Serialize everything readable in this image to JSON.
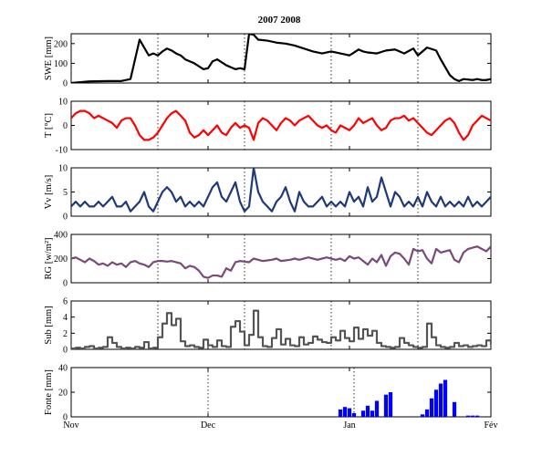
{
  "chart_data": {
    "title": "2007 2008",
    "x_axis": {
      "tick_labels": [
        "Nov",
        "Dec",
        "Jan",
        "Fév"
      ],
      "tick_days": [
        0,
        30,
        61,
        92
      ],
      "range_days": [
        0,
        92
      ]
    },
    "panels": [
      {
        "type": "line",
        "ylabel": "SWE [mm]",
        "ylim": [
          0,
          250
        ],
        "yticks": [
          0,
          100,
          200
        ],
        "color": "#000000",
        "marker_days": [
          19,
          38,
          57,
          76
        ],
        "x": [
          0,
          4,
          8,
          11,
          13,
          14,
          15,
          16,
          17,
          18,
          19,
          20,
          21,
          22,
          23,
          24,
          25,
          26,
          27,
          28,
          29,
          30,
          31,
          32,
          33,
          34,
          35,
          36,
          37,
          38,
          39,
          40,
          41,
          43,
          45,
          47,
          49,
          51,
          53,
          55,
          57,
          59,
          61,
          62,
          63,
          64,
          65,
          67,
          69,
          71,
          73,
          75,
          76,
          78,
          80,
          81,
          82,
          83,
          84,
          85,
          86,
          88,
          89,
          90,
          91,
          92
        ],
        "values": [
          0,
          8,
          10,
          10,
          20,
          120,
          220,
          180,
          140,
          150,
          140,
          160,
          175,
          165,
          150,
          140,
          120,
          110,
          100,
          85,
          70,
          75,
          110,
          120,
          105,
          90,
          80,
          70,
          75,
          70,
          250,
          245,
          220,
          215,
          205,
          200,
          190,
          175,
          160,
          150,
          160,
          150,
          140,
          155,
          170,
          160,
          155,
          150,
          165,
          170,
          150,
          175,
          140,
          180,
          165,
          120,
          80,
          40,
          20,
          10,
          20,
          15,
          20,
          15,
          15,
          20
        ]
      },
      {
        "type": "line",
        "ylabel": "T [°C]",
        "ylim": [
          -10,
          10
        ],
        "yticks": [
          -10,
          0,
          10
        ],
        "color": "#ff0000",
        "marker_days": [
          19,
          38,
          57,
          76
        ],
        "x": [
          0,
          1,
          2,
          3,
          4,
          5,
          6,
          7,
          8,
          9,
          10,
          11,
          12,
          13,
          14,
          15,
          16,
          17,
          18,
          19,
          20,
          21,
          22,
          23,
          24,
          25,
          26,
          27,
          28,
          29,
          30,
          31,
          32,
          33,
          34,
          35,
          36,
          37,
          38,
          39,
          40,
          41,
          42,
          43,
          44,
          45,
          46,
          47,
          48,
          49,
          50,
          51,
          52,
          53,
          54,
          55,
          56,
          57,
          58,
          59,
          60,
          61,
          62,
          63,
          64,
          65,
          66,
          67,
          68,
          69,
          70,
          71,
          72,
          73,
          74,
          75,
          76,
          77,
          78,
          79,
          80,
          81,
          82,
          83,
          84,
          85,
          86,
          87,
          88,
          89,
          90,
          91,
          92
        ],
        "values": [
          3,
          5,
          6,
          6,
          5,
          3,
          4,
          3,
          2,
          1,
          -1,
          2,
          3,
          3,
          0,
          -4,
          -6,
          -6,
          -5,
          -3,
          0,
          3,
          5,
          6,
          4,
          2,
          -3,
          -5,
          -4,
          -2,
          -4,
          -2,
          0,
          -3,
          -4,
          -1,
          1,
          -1,
          0,
          -1,
          -6,
          1,
          3,
          2,
          0,
          -2,
          1,
          3,
          2,
          0,
          2,
          3,
          4,
          2,
          0,
          -1,
          0,
          -2,
          -3,
          0,
          -1,
          -2,
          0,
          3,
          1,
          2,
          3,
          0,
          -2,
          -1,
          2,
          3,
          3,
          4,
          2,
          3,
          1,
          -1,
          -3,
          -4,
          -2,
          0,
          2,
          3,
          1,
          -3,
          -6,
          -4,
          0,
          2,
          4,
          3,
          2
        ]
      },
      {
        "type": "line",
        "ylabel": "Vv [m/s]",
        "ylim": [
          0,
          10
        ],
        "yticks": [
          0,
          5,
          10
        ],
        "color": "#1f3a7a",
        "marker_days": [
          19,
          38,
          57,
          76
        ],
        "x": [
          0,
          1,
          2,
          3,
          4,
          5,
          6,
          7,
          8,
          9,
          10,
          11,
          12,
          13,
          14,
          15,
          16,
          17,
          18,
          19,
          20,
          21,
          22,
          23,
          24,
          25,
          26,
          27,
          28,
          29,
          30,
          31,
          32,
          33,
          34,
          35,
          36,
          37,
          38,
          39,
          40,
          41,
          42,
          43,
          44,
          45,
          46,
          47,
          48,
          49,
          50,
          51,
          52,
          53,
          54,
          55,
          56,
          57,
          58,
          59,
          60,
          61,
          62,
          63,
          64,
          65,
          66,
          67,
          68,
          69,
          70,
          71,
          72,
          73,
          74,
          75,
          76,
          77,
          78,
          79,
          80,
          81,
          82,
          83,
          84,
          85,
          86,
          87,
          88,
          89,
          90,
          91,
          92
        ],
        "values": [
          2,
          3,
          2,
          3,
          2,
          2,
          3,
          2,
          3,
          4,
          2,
          2,
          3,
          1,
          2,
          3,
          5,
          2,
          1,
          3,
          5,
          6,
          5,
          3,
          4,
          2,
          3,
          2,
          3,
          2,
          4,
          6,
          7,
          4,
          3,
          5,
          7,
          3,
          1,
          2,
          10,
          5,
          3,
          2,
          1,
          3,
          4,
          6,
          3,
          1,
          5,
          3,
          2,
          2,
          3,
          4,
          2,
          3,
          2,
          3,
          2,
          5,
          3,
          4,
          2,
          6,
          3,
          4,
          8,
          5,
          2,
          5,
          4,
          2,
          3,
          2,
          4,
          2,
          5,
          3,
          2,
          4,
          2,
          3,
          2,
          3,
          2,
          4,
          2,
          3,
          2,
          3,
          4
        ]
      },
      {
        "type": "line",
        "ylabel": "RG [w/m²]",
        "ylim": [
          0,
          400
        ],
        "yticks": [
          0,
          200,
          400
        ],
        "color": "#7a4a78",
        "marker_days": [
          19,
          38,
          57,
          76
        ],
        "x": [
          0,
          1,
          2,
          3,
          4,
          5,
          6,
          7,
          8,
          9,
          10,
          11,
          12,
          13,
          14,
          15,
          16,
          17,
          18,
          19,
          20,
          21,
          22,
          23,
          24,
          25,
          26,
          27,
          28,
          29,
          30,
          31,
          32,
          33,
          34,
          35,
          36,
          37,
          38,
          39,
          40,
          41,
          42,
          43,
          44,
          45,
          46,
          47,
          48,
          49,
          50,
          51,
          52,
          53,
          54,
          55,
          56,
          57,
          58,
          59,
          60,
          61,
          62,
          63,
          64,
          65,
          66,
          67,
          68,
          69,
          70,
          71,
          72,
          73,
          74,
          75,
          76,
          77,
          78,
          79,
          80,
          81,
          82,
          83,
          84,
          85,
          86,
          87,
          88,
          89,
          90,
          91,
          92
        ],
        "values": [
          200,
          210,
          190,
          170,
          200,
          180,
          150,
          160,
          140,
          170,
          150,
          160,
          130,
          170,
          180,
          160,
          150,
          130,
          170,
          180,
          180,
          175,
          180,
          170,
          160,
          120,
          140,
          130,
          100,
          50,
          40,
          60,
          60,
          50,
          120,
          100,
          170,
          180,
          175,
          170,
          200,
          190,
          180,
          185,
          190,
          200,
          180,
          185,
          190,
          200,
          190,
          200,
          210,
          200,
          190,
          200,
          210,
          200,
          190,
          200,
          180,
          220,
          200,
          210,
          180,
          150,
          200,
          170,
          230,
          140,
          220,
          250,
          240,
          200,
          150,
          280,
          260,
          270,
          200,
          160,
          280,
          250,
          260,
          270,
          190,
          170,
          250,
          280,
          290,
          300,
          280,
          260,
          300
        ]
      },
      {
        "type": "step",
        "ylabel": "Sub [mm]",
        "ylim": [
          0,
          6
        ],
        "yticks": [
          0,
          2,
          4,
          6
        ],
        "color": "#555555",
        "marker_days": [
          19,
          38,
          57,
          76
        ],
        "x": [
          0,
          1,
          2,
          3,
          4,
          5,
          6,
          7,
          8,
          9,
          10,
          11,
          12,
          13,
          14,
          15,
          16,
          17,
          18,
          19,
          20,
          21,
          22,
          23,
          24,
          25,
          26,
          27,
          28,
          29,
          30,
          31,
          32,
          33,
          34,
          35,
          36,
          37,
          38,
          39,
          40,
          41,
          42,
          43,
          44,
          45,
          46,
          47,
          48,
          49,
          50,
          51,
          52,
          53,
          54,
          55,
          56,
          57,
          58,
          59,
          60,
          61,
          62,
          63,
          64,
          65,
          66,
          67,
          68,
          69,
          70,
          71,
          72,
          73,
          74,
          75,
          76,
          77,
          78,
          79,
          80,
          81,
          82,
          83,
          84,
          85,
          86,
          87,
          88,
          89,
          90,
          91,
          92
        ],
        "values": [
          0.1,
          0.2,
          0.1,
          0.3,
          0.4,
          0.1,
          0.2,
          0.3,
          1.5,
          0.8,
          0.3,
          0.1,
          0.2,
          0.1,
          0.3,
          0.2,
          0.9,
          0.1,
          0.2,
          1.5,
          3.2,
          4.5,
          3.0,
          3.8,
          1.0,
          0.4,
          0.5,
          0.3,
          0.2,
          1.2,
          0.5,
          0.3,
          1.1,
          0.4,
          0.3,
          2.8,
          3.5,
          2.2,
          0.5,
          1.8,
          4.8,
          1.5,
          0.4,
          0.3,
          1.4,
          2.5,
          0.6,
          1.3,
          0.5,
          0.4,
          1.5,
          0.6,
          0.8,
          1.6,
          1.2,
          0.9,
          0.8,
          1.5,
          1.1,
          2.3,
          1.4,
          1.0,
          2.7,
          1.3,
          2.5,
          1.7,
          2.3,
          0.8,
          0.4,
          0.3,
          0.2,
          0.3,
          1.4,
          0.8,
          0.5,
          0.3,
          0.2,
          0.3,
          3.2,
          1.5,
          0.5,
          0.3,
          0.2,
          0.3,
          0.8,
          0.4,
          0.5,
          0.3,
          0.4,
          0.5,
          0.4,
          1.1,
          0.6
        ]
      },
      {
        "type": "bar",
        "ylabel": "Fonte [mm]",
        "ylim": [
          0,
          40
        ],
        "yticks": [
          0,
          20,
          40
        ],
        "color": "#0000ff",
        "marker_days": [
          30,
          62
        ],
        "x": [
          59,
          60,
          61,
          62,
          64,
          65,
          66,
          67,
          69,
          70,
          71,
          75,
          77,
          78,
          79,
          80,
          81,
          82,
          84,
          87,
          88,
          89
        ],
        "values": [
          6,
          8,
          7,
          3,
          5,
          9,
          5,
          13,
          18,
          20,
          0,
          0,
          2,
          6,
          15,
          22,
          27,
          30,
          12,
          1,
          1,
          1
        ]
      }
    ]
  }
}
